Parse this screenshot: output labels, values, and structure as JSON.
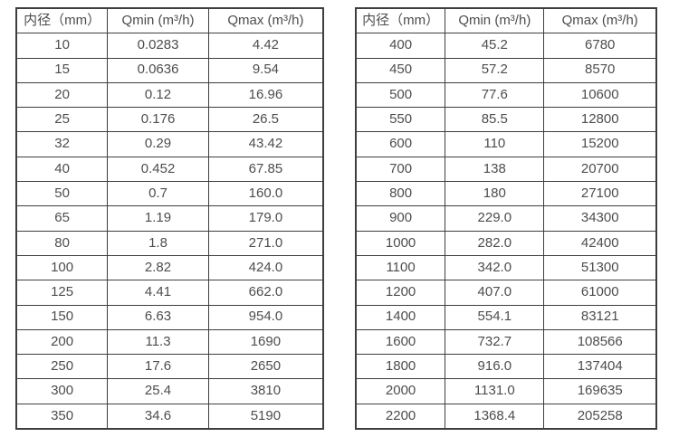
{
  "colors": {
    "border": "#3e3e3e",
    "text": "#4d4d4d",
    "background": "#ffffff"
  },
  "tables": [
    {
      "name": "flow-spec-table-small-diameters",
      "headers": [
        "内径（mm）",
        "Qmin (m³/h)",
        "Qmax (m³/h)"
      ],
      "rows": [
        [
          "10",
          "0.0283",
          "4.42"
        ],
        [
          "15",
          "0.0636",
          "9.54"
        ],
        [
          "20",
          "0.12",
          "16.96"
        ],
        [
          "25",
          "0.176",
          "26.5"
        ],
        [
          "32",
          "0.29",
          "43.42"
        ],
        [
          "40",
          "0.452",
          "67.85"
        ],
        [
          "50",
          "0.7",
          "160.0"
        ],
        [
          "65",
          "1.19",
          "179.0"
        ],
        [
          "80",
          "1.8",
          "271.0"
        ],
        [
          "100",
          "2.82",
          "424.0"
        ],
        [
          "125",
          "4.41",
          "662.0"
        ],
        [
          "150",
          "6.63",
          "954.0"
        ],
        [
          "200",
          "11.3",
          "1690"
        ],
        [
          "250",
          "17.6",
          "2650"
        ],
        [
          "300",
          "25.4",
          "3810"
        ],
        [
          "350",
          "34.6",
          "5190"
        ]
      ]
    },
    {
      "name": "flow-spec-table-large-diameters",
      "headers": [
        "内径（mm）",
        "Qmin (m³/h)",
        "Qmax (m³/h)"
      ],
      "rows": [
        [
          "400",
          "45.2",
          "6780"
        ],
        [
          "450",
          "57.2",
          "8570"
        ],
        [
          "500",
          "77.6",
          "10600"
        ],
        [
          "550",
          "85.5",
          "12800"
        ],
        [
          "600",
          "110",
          "15200"
        ],
        [
          "700",
          "138",
          "20700"
        ],
        [
          "800",
          "180",
          "27100"
        ],
        [
          "900",
          "229.0",
          "34300"
        ],
        [
          "1000",
          "282.0",
          "42400"
        ],
        [
          "1100",
          "342.0",
          "51300"
        ],
        [
          "1200",
          "407.0",
          "61000"
        ],
        [
          "1400",
          "554.1",
          "83121"
        ],
        [
          "1600",
          "732.7",
          "108566"
        ],
        [
          "1800",
          "916.0",
          "137404"
        ],
        [
          "2000",
          "1131.0",
          "169635"
        ],
        [
          "2200",
          "1368.4",
          "205258"
        ]
      ]
    }
  ]
}
